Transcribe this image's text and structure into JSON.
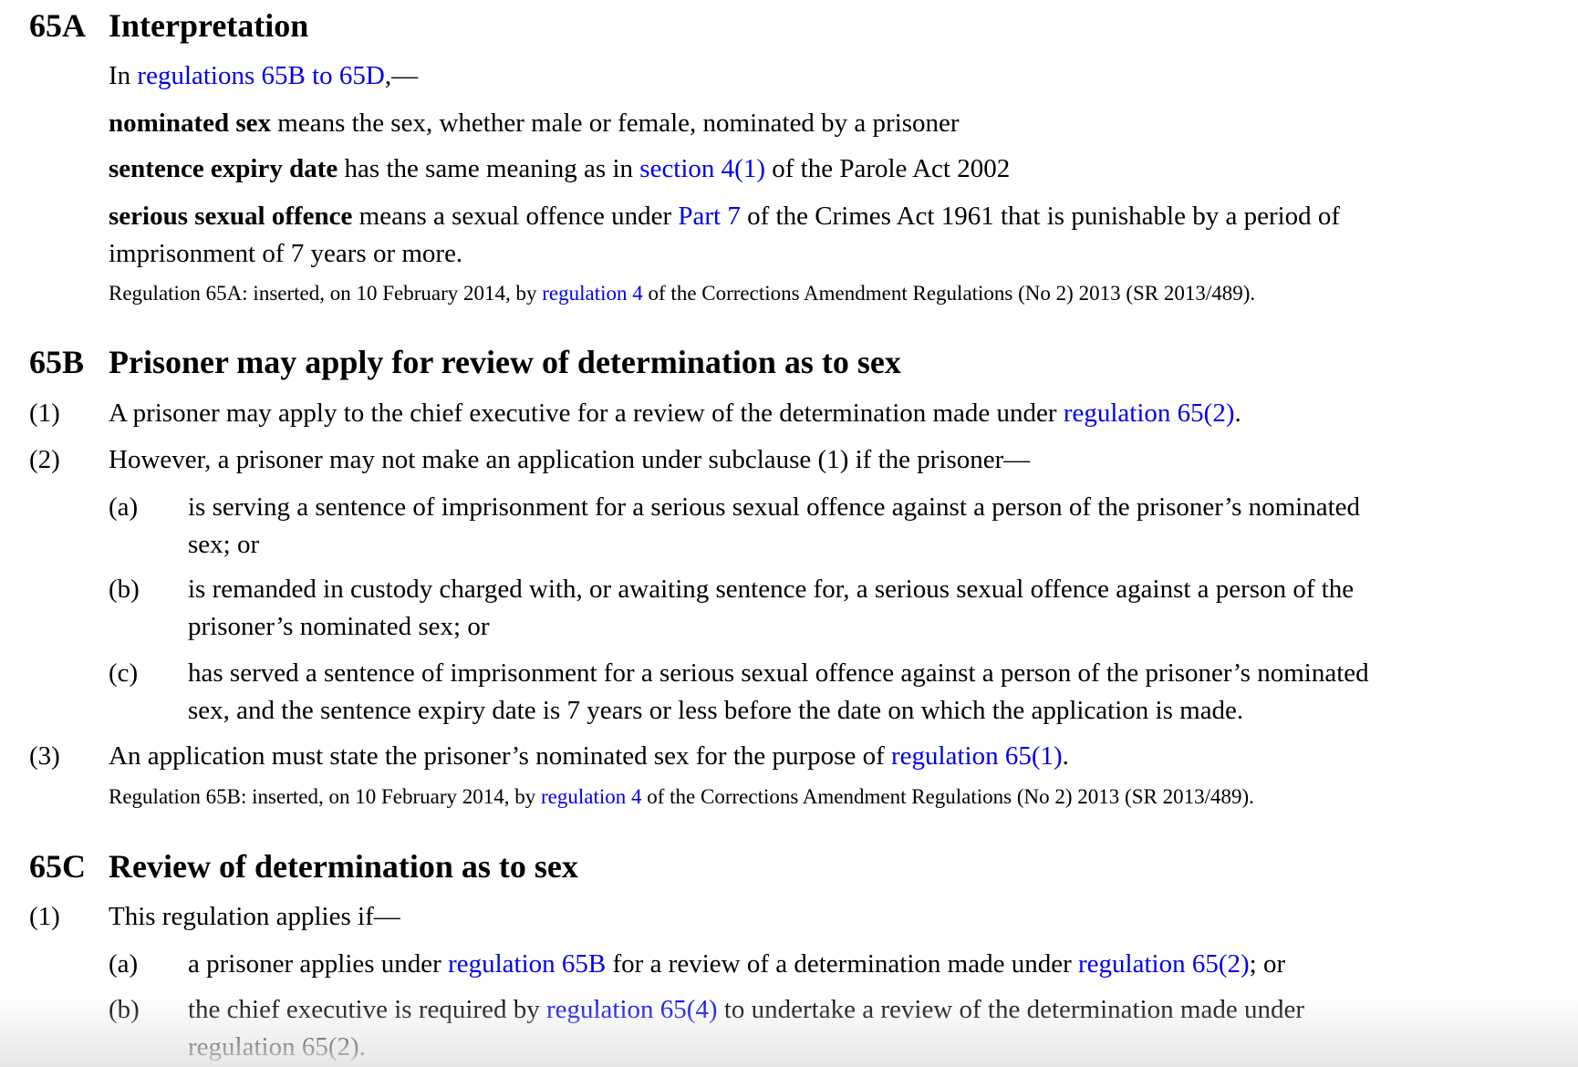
{
  "lines": [
    {
      "num": "65A",
      "segs": [
        {
          "t": "Interpretation"
        }
      ]
    },
    {
      "segs": [
        {
          "t": "In "
        },
        {
          "t": "regulations 65B to 65D",
          "link": true
        },
        {
          "t": ",—"
        }
      ]
    },
    {
      "segs": [
        {
          "t": "nominated sex",
          "b": true
        },
        {
          "t": " means the sex, whether male or female, nominated by a prisoner"
        }
      ]
    },
    {
      "segs": [
        {
          "t": "sentence expiry date",
          "b": true
        },
        {
          "t": " has the same meaning as in "
        },
        {
          "t": "section 4(1)",
          "link": true
        },
        {
          "t": " of the Parole Act 2002"
        }
      ]
    },
    {
      "segs": [
        {
          "t": "serious sexual offence",
          "b": true
        },
        {
          "t": " means a sexual offence under "
        },
        {
          "t": "Part 7",
          "link": true
        },
        {
          "t": " of the Crimes Act 1961 that is punishable by a period of"
        }
      ]
    },
    {
      "segs": [
        {
          "t": "imprisonment of 7 years or more."
        }
      ]
    },
    {
      "segs": [
        {
          "t": "Regulation 65A: inserted, on 10 February 2014, by "
        },
        {
          "t": "regulation 4",
          "link": true
        },
        {
          "t": " of the Corrections Amendment Regulations (No 2) 2013 (SR 2013/489)."
        }
      ]
    },
    {
      "num": "65B",
      "segs": [
        {
          "t": "Prisoner may apply for review of determination as to sex"
        }
      ]
    },
    {
      "num": "(1)",
      "segs": [
        {
          "t": "A prisoner may apply to the chief executive for a review of the determination made under "
        },
        {
          "t": "regulation 65(2)",
          "link": true
        },
        {
          "t": "."
        }
      ]
    },
    {
      "num": "(2)",
      "segs": [
        {
          "t": "However, a prisoner may not make an application under subclause (1) if the prisoner—"
        }
      ]
    },
    {
      "num": "(a)",
      "segs": [
        {
          "t": "is serving a sentence of imprisonment for a serious sexual offence against a person of the prisoner’s nominated"
        }
      ]
    },
    {
      "segs": [
        {
          "t": "sex; or"
        }
      ]
    },
    {
      "num": "(b)",
      "segs": [
        {
          "t": "is remanded in custody charged with, or awaiting sentence for, a serious sexual offence against a person of the"
        }
      ]
    },
    {
      "segs": [
        {
          "t": "prisoner’s nominated sex; or"
        }
      ]
    },
    {
      "num": "(c)",
      "segs": [
        {
          "t": "has served a sentence of imprisonment for a serious sexual offence against a person of the prisoner’s nominated"
        }
      ]
    },
    {
      "segs": [
        {
          "t": "sex, and the sentence expiry date is 7 years or less before the date on which the application is made."
        }
      ]
    },
    {
      "num": "(3)",
      "segs": [
        {
          "t": "An application must state the prisoner’s nominated sex for the purpose of "
        },
        {
          "t": "regulation 65(1)",
          "link": true
        },
        {
          "t": "."
        }
      ]
    },
    {
      "segs": [
        {
          "t": "Regulation 65B: inserted, on 10 February 2014, by "
        },
        {
          "t": "regulation 4",
          "link": true
        },
        {
          "t": " of the Corrections Amendment Regulations (No 2) 2013 (SR 2013/489)."
        }
      ]
    },
    {
      "num": "65C",
      "segs": [
        {
          "t": "Review of determination as to sex"
        }
      ]
    },
    {
      "num": "(1)",
      "segs": [
        {
          "t": "This regulation applies if—"
        }
      ]
    },
    {
      "num": "(a)",
      "segs": [
        {
          "t": "a prisoner applies under "
        },
        {
          "t": "regulation 65B",
          "link": true
        },
        {
          "t": " for a review of a determination made under "
        },
        {
          "t": "regulation 65(2)",
          "link": true
        },
        {
          "t": "; or"
        }
      ]
    },
    {
      "num": "(b)",
      "segs": [
        {
          "t": "the chief executive is required by "
        },
        {
          "t": "regulation 65(4)",
          "link": true
        },
        {
          "t": " to undertake a review of the determination made under"
        }
      ]
    },
    {
      "segs": [
        {
          "t": "regulation 65(2)."
        }
      ]
    }
  ],
  "colors": {
    "link": "#0000ee",
    "text": "#000000"
  }
}
